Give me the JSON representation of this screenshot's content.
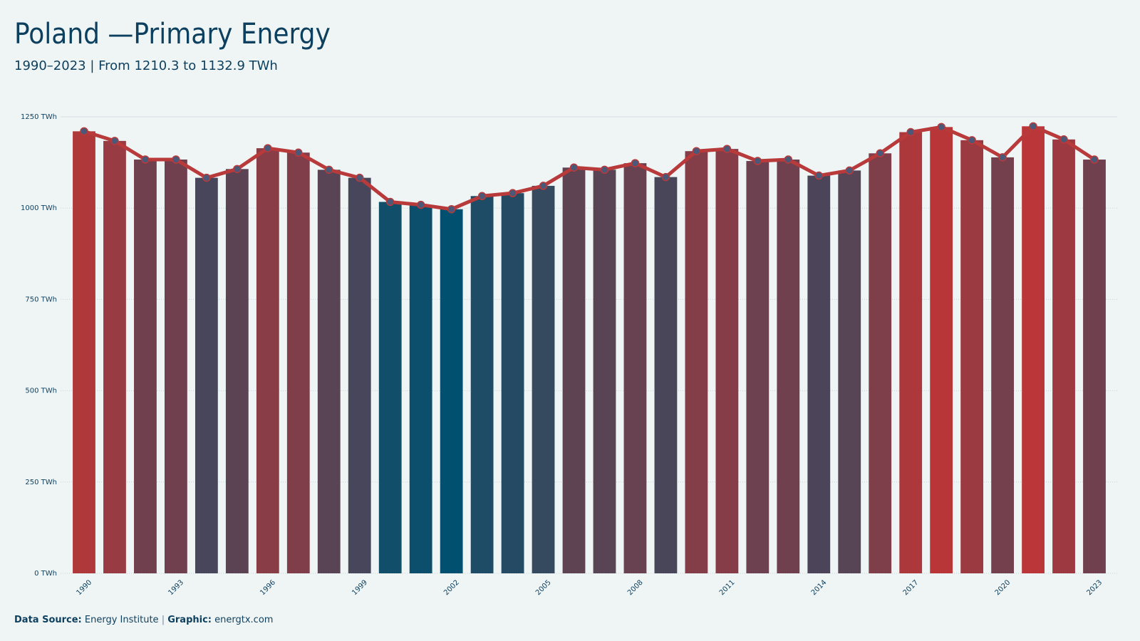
{
  "chart_data": {
    "type": "bar",
    "title": "Poland —Primary Energy",
    "subtitle": "1990–2023 | From 1210.3  to 1132.9  TWh",
    "categories": [
      "1990",
      null,
      null,
      "1993",
      null,
      null,
      "1996",
      null,
      null,
      "1999",
      null,
      null,
      "2002",
      null,
      null,
      "2005",
      null,
      null,
      "2008",
      null,
      null,
      "2011",
      null,
      null,
      "2014",
      null,
      null,
      "2017",
      null,
      null,
      "2020",
      null,
      null,
      "2023"
    ],
    "values": [
      1210.3,
      1184,
      1133,
      1133,
      1083,
      1107,
      1164,
      1152,
      1105,
      1083,
      1017,
      1009,
      997,
      1033,
      1041,
      1061,
      1111,
      1105,
      1123,
      1085,
      1156,
      1162,
      1129,
      1133,
      1089,
      1103,
      1150,
      1208,
      1222,
      1186,
      1139,
      1224,
      1188,
      1132.9
    ],
    "bar_color_scale": [
      "#01506f",
      "#ba3638"
    ],
    "line": true,
    "line_color": "#b83a3a",
    "marker_color": "#4b5877",
    "ylim": [
      0,
      1250
    ],
    "yticks": [
      {
        "value": 0,
        "label": "0 TWh"
      },
      {
        "value": 250,
        "label": "250 TWh"
      },
      {
        "value": 500,
        "label": "500 TWh"
      },
      {
        "value": 750,
        "label": "750 TWh"
      },
      {
        "value": 1000,
        "label": "1000 TWh"
      },
      {
        "value": 1250,
        "label": "1250 TWh"
      }
    ],
    "grid": true,
    "source_label": "Data Source:",
    "source": "Energy Institute",
    "separator": "|",
    "graphic_label": "Graphic:",
    "graphic": "energtx.com"
  }
}
